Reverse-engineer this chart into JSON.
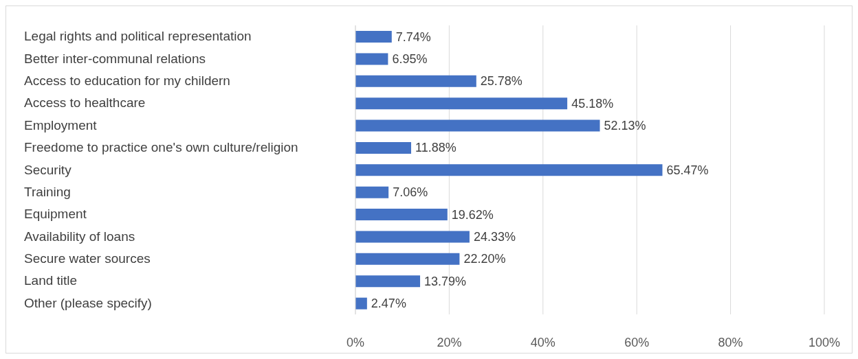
{
  "chart_data": {
    "type": "bar",
    "orientation": "horizontal",
    "categories": [
      "Legal rights and political representation",
      "Better inter-communal relations",
      "Access to education for my childern",
      "Access to healthcare",
      "Employment",
      "Freedome to practice one's own culture/religion",
      "Security",
      "Training",
      "Equipment",
      "Availability of loans",
      "Secure water sources",
      "Land title",
      "Other (please specify)"
    ],
    "values": [
      7.74,
      6.95,
      25.78,
      45.18,
      52.13,
      11.88,
      65.47,
      7.06,
      19.62,
      24.33,
      22.2,
      13.79,
      2.47
    ],
    "value_labels": [
      "7.74%",
      "6.95%",
      "25.78%",
      "45.18%",
      "52.13%",
      "11.88%",
      "65.47%",
      "7.06%",
      "19.62%",
      "24.33%",
      "22.20%",
      "13.79%",
      "2.47%"
    ],
    "color": "#4472c4",
    "xlim": [
      0,
      100
    ],
    "xticks": [
      {
        "value": 0,
        "label": "0%"
      },
      {
        "value": 20,
        "label": "20%"
      },
      {
        "value": 40,
        "label": "40%"
      },
      {
        "value": 60,
        "label": "60%"
      },
      {
        "value": 80,
        "label": "80%"
      },
      {
        "value": 100,
        "label": "100%"
      }
    ],
    "grid": "x",
    "legend": false
  }
}
